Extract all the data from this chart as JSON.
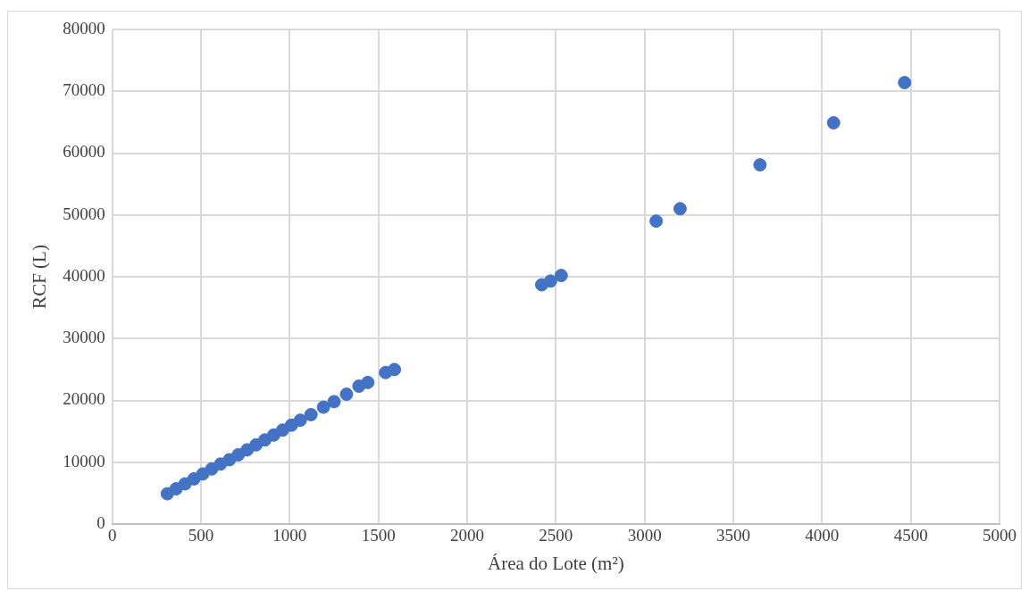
{
  "chart_data": {
    "type": "scatter",
    "xlabel": "Área do Lote (m²)",
    "ylabel": "RCF (L)",
    "x": [
      310,
      360,
      410,
      460,
      510,
      560,
      610,
      660,
      710,
      760,
      810,
      860,
      910,
      960,
      1010,
      1060,
      1120,
      1190,
      1250,
      1320,
      1390,
      1440,
      1540,
      1590,
      2420,
      2470,
      2530,
      3065,
      3200,
      3650,
      4065,
      4465
    ],
    "series": [
      {
        "color": "#4472c4",
        "values": [
          4900,
          5700,
          6500,
          7300,
          8100,
          8900,
          9700,
          10400,
          11200,
          12000,
          12800,
          13600,
          14400,
          15200,
          16000,
          16800,
          17700,
          18900,
          19800,
          21000,
          22300,
          22900,
          24500,
          25000,
          38700,
          39300,
          40200,
          49000,
          51000,
          58100,
          64900,
          71400
        ]
      }
    ],
    "xlim": [
      0,
      5000
    ],
    "xticks": [
      0,
      500,
      1000,
      1500,
      2000,
      2500,
      3000,
      3500,
      4000,
      4500,
      5000
    ],
    "ylim": [
      0,
      80000
    ],
    "yticks": [
      0,
      10000,
      20000,
      30000,
      40000,
      50000,
      60000,
      70000,
      80000
    ],
    "grid": true,
    "legend": false,
    "marker": "circle"
  }
}
